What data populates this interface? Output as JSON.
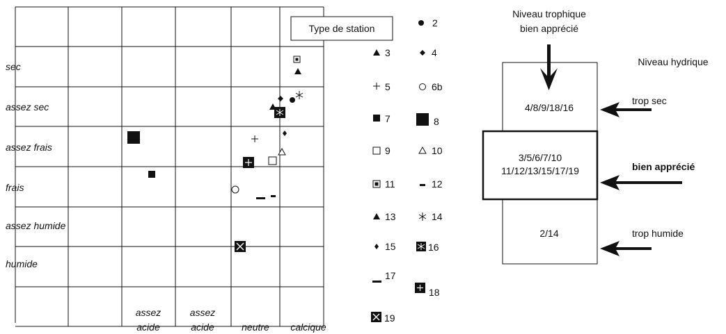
{
  "colors": {
    "ink": "#111111",
    "paper": "#ffffff"
  },
  "grid": {
    "row_labels": [
      "sec",
      "assez sec",
      "assez frais",
      "frais",
      "assez humide",
      "humide"
    ],
    "column_labels": [
      {
        "line1": "assez",
        "line2": "acide"
      },
      {
        "line1": "assez",
        "line2": "acide"
      },
      {
        "line1": "",
        "line2": "neutre"
      },
      {
        "line1": "",
        "line2": "calcique"
      }
    ],
    "legend_title": "Type de station"
  },
  "legend": [
    {
      "id": "2",
      "marker": "dot-icon"
    },
    {
      "id": "3",
      "marker": "triangle-filled-icon"
    },
    {
      "id": "4",
      "marker": "diamond-icon"
    },
    {
      "id": "5",
      "marker": "plus-icon"
    },
    {
      "id": "6b",
      "marker": "circle-open-icon"
    },
    {
      "id": "7",
      "marker": "square-filled-icon"
    },
    {
      "id": "8",
      "marker": "square-large-icon"
    },
    {
      "id": "9",
      "marker": "square-open-icon"
    },
    {
      "id": "10",
      "marker": "triangle-open-icon"
    },
    {
      "id": "11",
      "marker": "square-inset-icon"
    },
    {
      "id": "12",
      "marker": "dash-small-icon"
    },
    {
      "id": "13",
      "marker": "triangle-small-icon"
    },
    {
      "id": "14",
      "marker": "asterisk-icon"
    },
    {
      "id": "15",
      "marker": "diamond-small-icon"
    },
    {
      "id": "16",
      "marker": "square-asterisk-icon"
    },
    {
      "id": "17",
      "marker": "dash-icon"
    },
    {
      "id": "18",
      "marker": "square-plus-icon"
    },
    {
      "id": "19",
      "marker": "square-x-icon"
    }
  ],
  "right_diagram": {
    "top_label_line1": "Niveau trophique",
    "top_label_line2": "bien apprécié",
    "side_title": "Niveau hydrique",
    "box_top": "4/8/9/18/16",
    "box_mid_line1": "3/5/6/7/10",
    "box_mid_line2": "11/12/13/15/17/19",
    "box_bottom": "2/14",
    "arrow_label_top": "trop sec",
    "arrow_label_mid": "bien apprécié",
    "arrow_label_bottom": "trop humide"
  }
}
